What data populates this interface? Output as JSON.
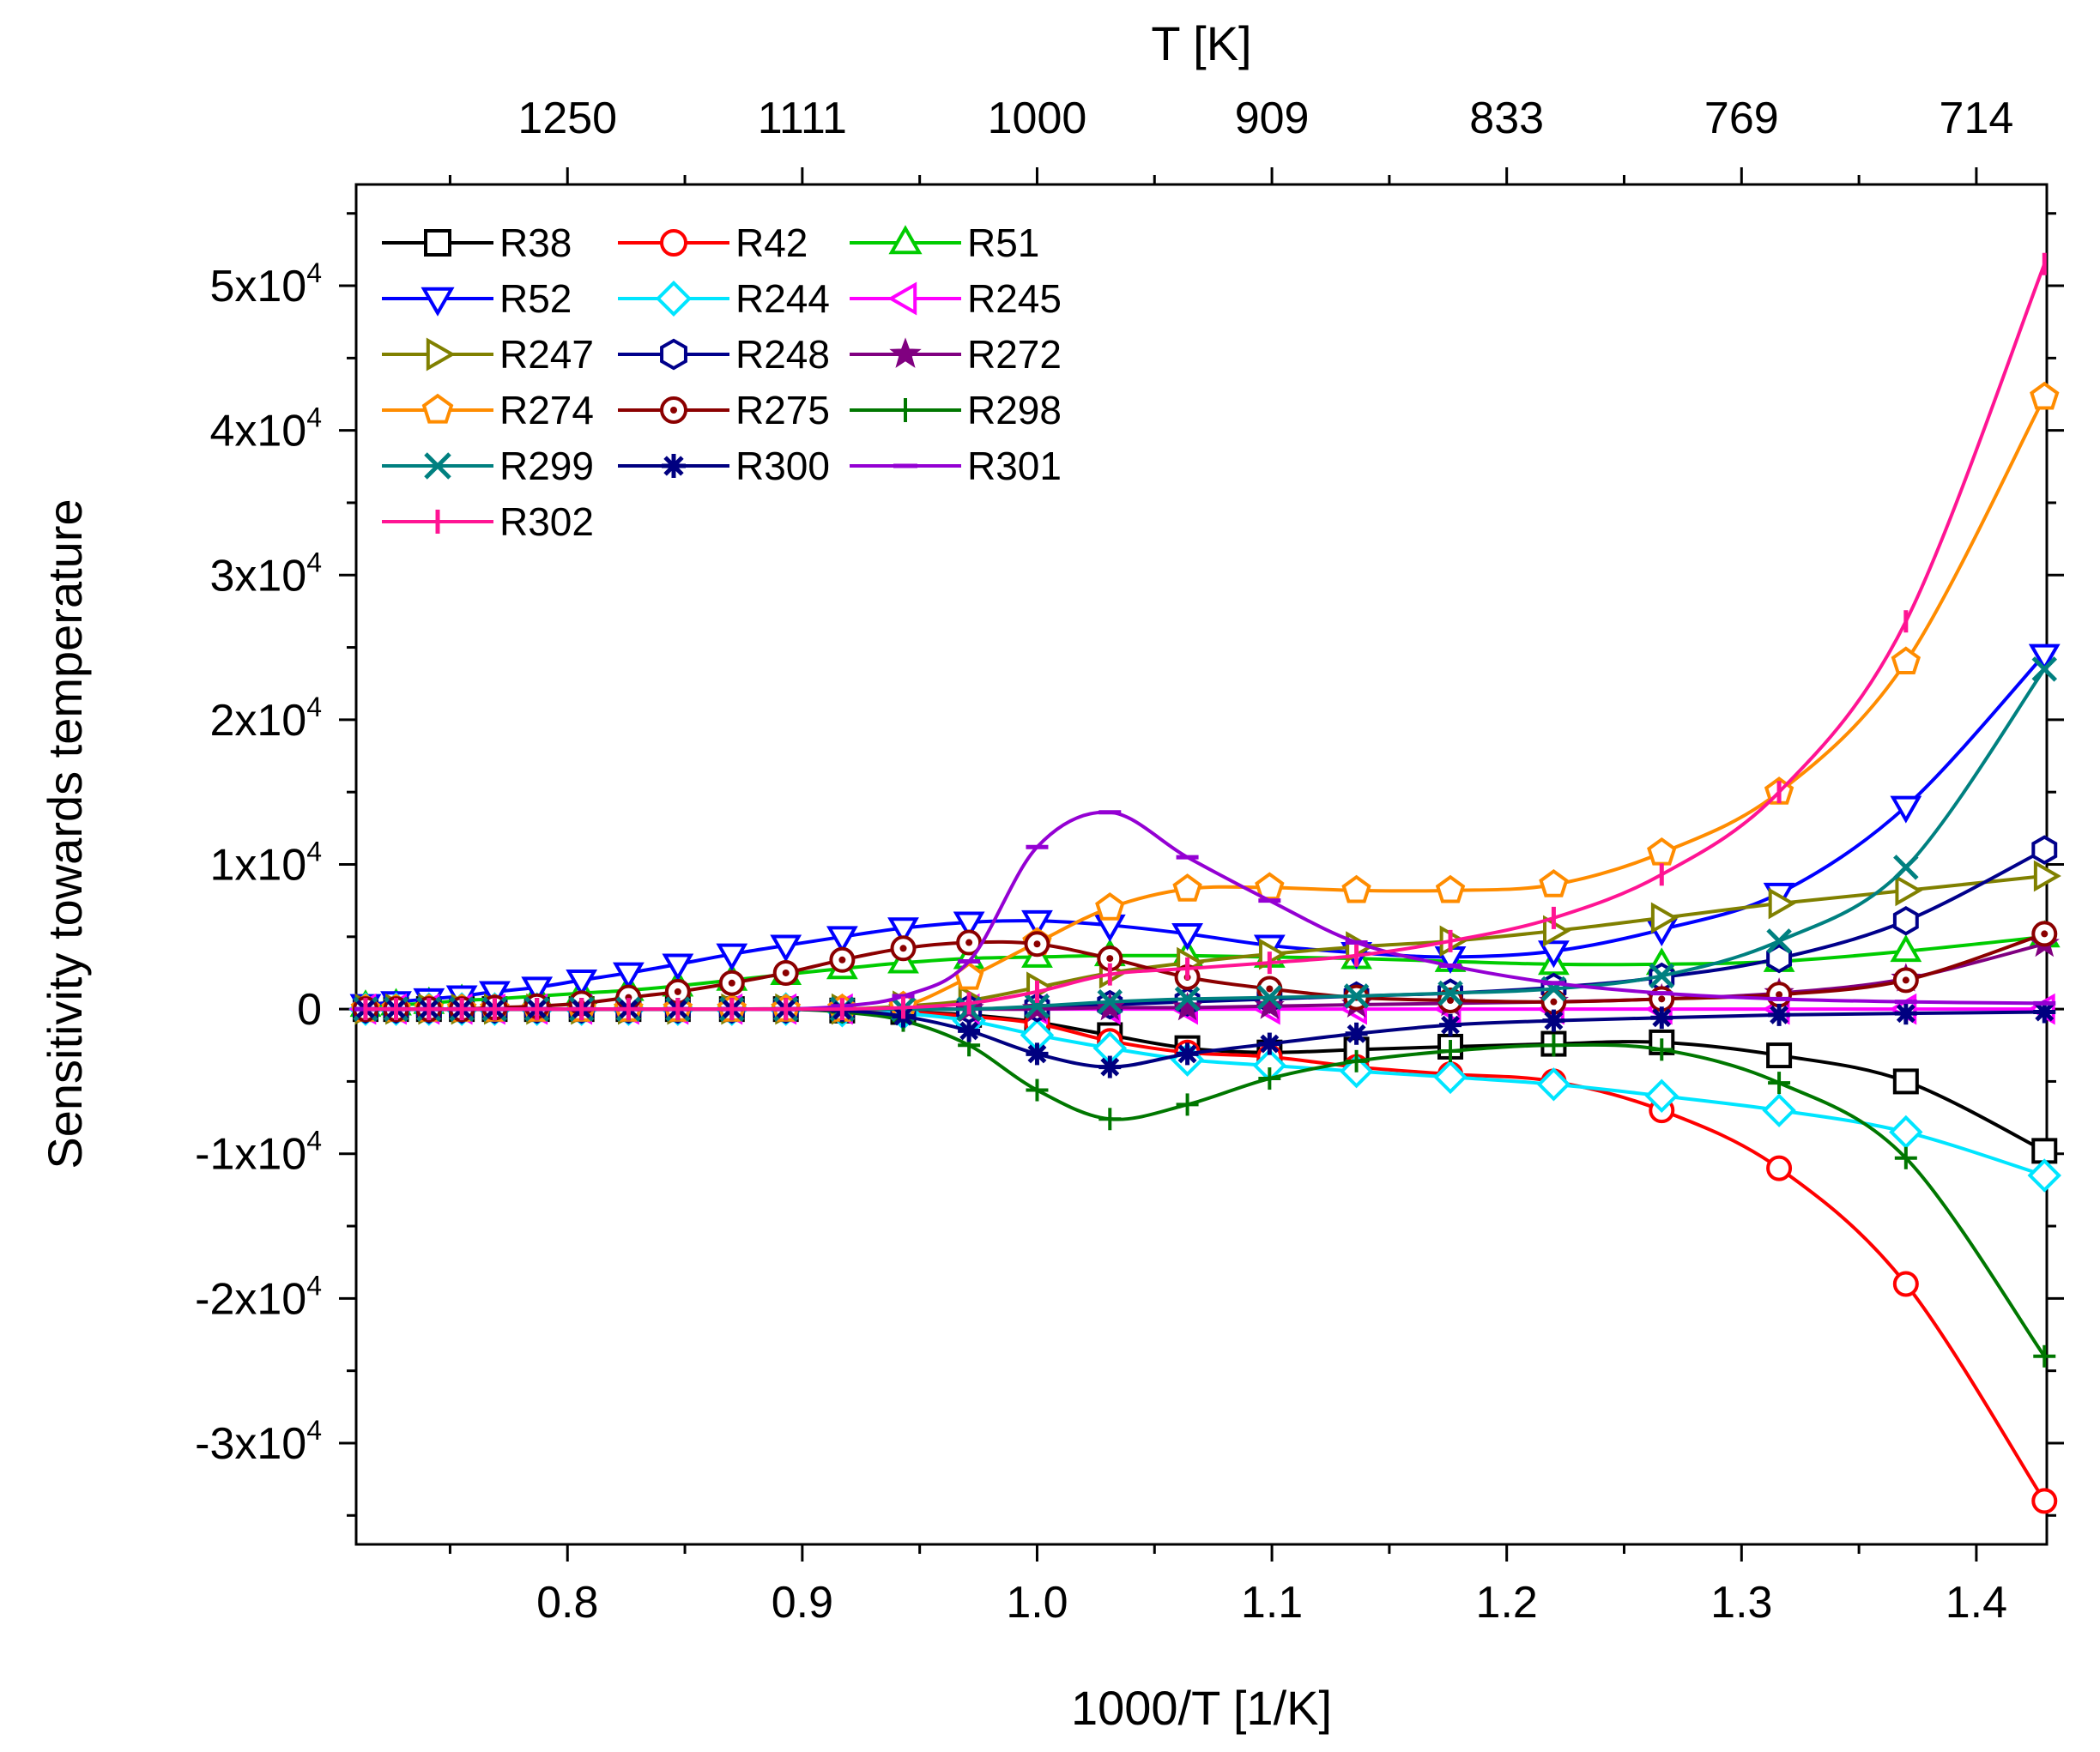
{
  "chart_data": {
    "type": "line",
    "xlabel": "1000/T [1/K]",
    "top_xlabel": "T [K]",
    "ylabel": "Sensitivity towards temperature",
    "xlim": [
      0.71,
      1.43
    ],
    "ylim": [
      -37000,
      57000
    ],
    "x_ticks": [
      {
        "v": 0.8,
        "label": "0.8"
      },
      {
        "v": 0.9,
        "label": "0.9"
      },
      {
        "v": 1.0,
        "label": "1.0"
      },
      {
        "v": 1.1,
        "label": "1.1"
      },
      {
        "v": 1.2,
        "label": "1.2"
      },
      {
        "v": 1.3,
        "label": "1.3"
      },
      {
        "v": 1.4,
        "label": "1.4"
      }
    ],
    "top_ticks": [
      {
        "v": 0.8,
        "label": "1250"
      },
      {
        "v": 0.9,
        "label": "1111"
      },
      {
        "v": 1.0,
        "label": "1000"
      },
      {
        "v": 1.1,
        "label": "909"
      },
      {
        "v": 1.2,
        "label": "833"
      },
      {
        "v": 1.3,
        "label": "769"
      },
      {
        "v": 1.4,
        "label": "714"
      }
    ],
    "y_ticks": [
      {
        "v": 50000,
        "mant": "5x10",
        "exp": "4"
      },
      {
        "v": 40000,
        "mant": "4x10",
        "exp": "4"
      },
      {
        "v": 30000,
        "mant": "3x10",
        "exp": "4"
      },
      {
        "v": 20000,
        "mant": "2x10",
        "exp": "4"
      },
      {
        "v": 10000,
        "mant": "1x10",
        "exp": "4"
      },
      {
        "v": 0,
        "mant": "0",
        "exp": ""
      },
      {
        "v": -10000,
        "mant": "-1x10",
        "exp": "4"
      },
      {
        "v": -20000,
        "mant": "-2x10",
        "exp": "4"
      },
      {
        "v": -30000,
        "mant": "-3x10",
        "exp": "4"
      }
    ],
    "x": [
      0.714,
      0.727,
      0.741,
      0.755,
      0.769,
      0.787,
      0.806,
      0.826,
      0.847,
      0.87,
      0.893,
      0.917,
      0.943,
      0.971,
      1.0,
      1.031,
      1.064,
      1.099,
      1.136,
      1.176,
      1.22,
      1.266,
      1.316,
      1.37,
      1.429
    ],
    "series": [
      {
        "name": "R38",
        "color": "#000000",
        "marker": "square",
        "values": [
          0,
          0,
          0,
          0,
          0,
          0,
          0,
          0,
          0,
          0,
          0,
          -100,
          -200,
          -400,
          -900,
          -1800,
          -2700,
          -3000,
          -2800,
          -2600,
          -2400,
          -2300,
          -3200,
          -5000,
          -9800
        ]
      },
      {
        "name": "R42",
        "color": "#ff0000",
        "marker": "circle",
        "values": [
          0,
          0,
          0,
          0,
          0,
          0,
          0,
          0,
          0,
          0,
          0,
          -100,
          -200,
          -500,
          -1000,
          -2200,
          -3000,
          -3300,
          -4000,
          -4500,
          -5000,
          -7000,
          -11000,
          -19000,
          -34000
        ]
      },
      {
        "name": "R51",
        "color": "#00cc00",
        "marker": "triangle-up",
        "values": [
          200,
          300,
          400,
          600,
          700,
          900,
          1100,
          1300,
          1600,
          2000,
          2400,
          2800,
          3200,
          3500,
          3600,
          3700,
          3700,
          3600,
          3500,
          3300,
          3100,
          3100,
          3300,
          4000,
          5000
        ]
      },
      {
        "name": "R52",
        "color": "#0000ff",
        "marker": "triangle-down",
        "values": [
          300,
          500,
          700,
          900,
          1200,
          1500,
          2000,
          2500,
          3100,
          3800,
          4400,
          5000,
          5600,
          6000,
          6100,
          5800,
          5200,
          4400,
          3900,
          3600,
          4000,
          5500,
          8000,
          14000,
          24500
        ]
      },
      {
        "name": "R244",
        "color": "#00e5ff",
        "marker": "diamond",
        "values": [
          0,
          0,
          0,
          0,
          0,
          0,
          0,
          0,
          0,
          0,
          0,
          -100,
          -300,
          -800,
          -1800,
          -2700,
          -3500,
          -3900,
          -4300,
          -4700,
          -5200,
          -6000,
          -7000,
          -8500,
          -11500
        ]
      },
      {
        "name": "R245",
        "color": "#ff00ff",
        "marker": "triangle-left",
        "values": [
          0,
          0,
          0,
          0,
          0,
          0,
          0,
          0,
          0,
          0,
          0,
          0,
          0,
          0,
          0,
          0,
          0,
          0,
          0,
          0,
          0,
          0,
          0,
          0,
          0
        ]
      },
      {
        "name": "R247",
        "color": "#808000",
        "marker": "triangle-right",
        "values": [
          0,
          0,
          0,
          0,
          0,
          0,
          0,
          0,
          0,
          0,
          0,
          0,
          200,
          600,
          1500,
          2500,
          3200,
          3800,
          4300,
          4700,
          5400,
          6300,
          7300,
          8200,
          9200
        ]
      },
      {
        "name": "R248",
        "color": "#00008b",
        "marker": "hexagon",
        "values": [
          0,
          0,
          0,
          0,
          0,
          0,
          0,
          0,
          0,
          0,
          0,
          0,
          0,
          0,
          100,
          300,
          500,
          700,
          900,
          1100,
          1500,
          2200,
          3500,
          6100,
          11000
        ]
      },
      {
        "name": "R272",
        "color": "#800080",
        "marker": "star",
        "values": [
          0,
          0,
          0,
          0,
          0,
          0,
          0,
          0,
          0,
          0,
          0,
          0,
          0,
          0,
          0,
          100,
          100,
          200,
          300,
          400,
          500,
          700,
          1100,
          2100,
          4500
        ]
      },
      {
        "name": "R274",
        "color": "#ff8c00",
        "marker": "pentagon",
        "values": [
          0,
          0,
          0,
          0,
          0,
          0,
          0,
          0,
          0,
          0,
          0,
          0,
          200,
          2200,
          4600,
          7000,
          8300,
          8400,
          8200,
          8200,
          8600,
          10800,
          15000,
          24000,
          42300
        ]
      },
      {
        "name": "R275",
        "color": "#8b0000",
        "marker": "dotted-circle",
        "values": [
          0,
          0,
          0,
          0,
          100,
          200,
          400,
          800,
          1200,
          1800,
          2500,
          3400,
          4200,
          4600,
          4500,
          3500,
          2200,
          1400,
          800,
          600,
          500,
          700,
          1000,
          2000,
          5200
        ]
      },
      {
        "name": "R298",
        "color": "#007700",
        "marker": "plus",
        "values": [
          0,
          0,
          0,
          0,
          0,
          0,
          0,
          0,
          0,
          0,
          0,
          -200,
          -800,
          -2500,
          -5600,
          -7600,
          -6600,
          -4800,
          -3600,
          -2900,
          -2500,
          -2800,
          -5100,
          -10300,
          -24000
        ]
      },
      {
        "name": "R299",
        "color": "#008080",
        "marker": "x",
        "values": [
          0,
          0,
          0,
          0,
          0,
          0,
          0,
          0,
          0,
          0,
          0,
          0,
          0,
          0,
          200,
          500,
          700,
          800,
          900,
          1100,
          1400,
          2300,
          4700,
          9800,
          23500
        ]
      },
      {
        "name": "R300",
        "color": "#000080",
        "marker": "asterisk",
        "values": [
          0,
          0,
          0,
          0,
          0,
          0,
          0,
          0,
          0,
          0,
          0,
          -100,
          -500,
          -1500,
          -3100,
          -4000,
          -3100,
          -2400,
          -1700,
          -1100,
          -800,
          -600,
          -400,
          -300,
          -200
        ]
      },
      {
        "name": "R301",
        "color": "#9400d3",
        "marker": "dash",
        "values": [
          0,
          0,
          0,
          0,
          0,
          0,
          0,
          0,
          0,
          0,
          0,
          200,
          900,
          3300,
          11200,
          13600,
          10500,
          7500,
          4600,
          3000,
          1800,
          1100,
          700,
          500,
          400
        ]
      },
      {
        "name": "R302",
        "color": "#ff1493",
        "marker": "vbar",
        "values": [
          0,
          0,
          0,
          0,
          0,
          0,
          0,
          0,
          0,
          0,
          0,
          0,
          100,
          400,
          1200,
          2400,
          2800,
          3200,
          3700,
          4700,
          6300,
          9300,
          15000,
          26800,
          51500
        ]
      }
    ],
    "legend": {
      "position": "top-left",
      "columns": 3
    }
  }
}
